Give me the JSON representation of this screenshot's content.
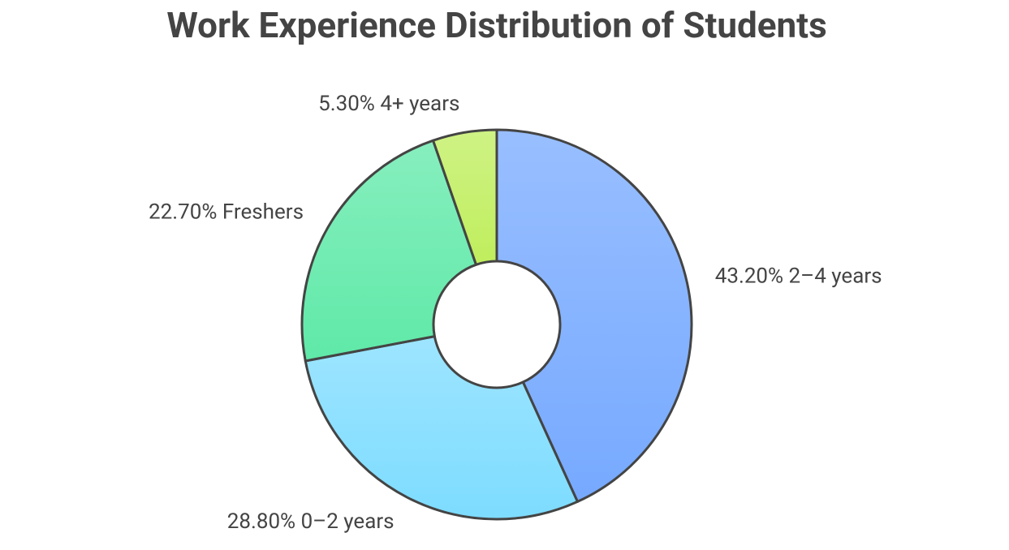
{
  "chart_data": {
    "type": "donut",
    "title": "Work Experience Distribution of Students",
    "categories": [
      "2–4 years",
      "0–2 years",
      "Freshers",
      "4+ years"
    ],
    "values": [
      43.2,
      28.8,
      22.7,
      5.3
    ],
    "value_labels": [
      "43.20%",
      "28.80%",
      "22.70%",
      "5.30%"
    ],
    "colors": [
      "#76a9ff",
      "#7ddcff",
      "#5fe9a8",
      "#bfee5c"
    ]
  }
}
